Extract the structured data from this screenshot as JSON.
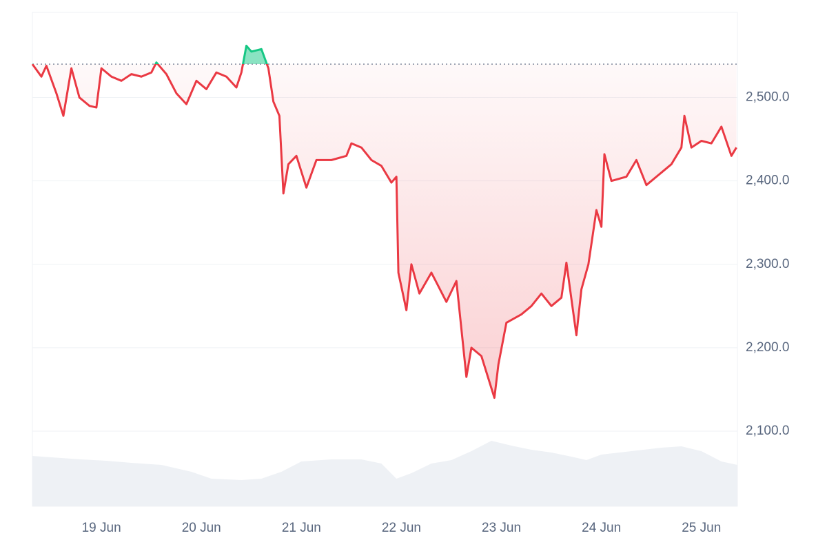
{
  "chart_data": {
    "type": "line",
    "x": [
      18.31,
      18.4,
      18.45,
      18.55,
      18.62,
      18.7,
      18.78,
      18.88,
      18.95,
      19.0,
      19.1,
      19.2,
      19.3,
      19.4,
      19.5,
      19.55,
      19.65,
      19.75,
      19.85,
      19.95,
      20.05,
      20.15,
      20.25,
      20.35,
      20.4,
      20.45,
      20.5,
      20.6,
      20.67,
      20.72,
      20.78,
      20.82,
      20.87,
      20.95,
      21.05,
      21.15,
      21.3,
      21.45,
      21.5,
      21.6,
      21.7,
      21.8,
      21.9,
      21.95,
      21.97,
      22.05,
      22.1,
      22.18,
      22.3,
      22.45,
      22.55,
      22.65,
      22.7,
      22.8,
      22.93,
      22.97,
      23.05,
      23.2,
      23.3,
      23.4,
      23.5,
      23.6,
      23.65,
      23.75,
      23.8,
      23.87,
      23.95,
      24.0,
      24.03,
      24.1,
      24.25,
      24.35,
      24.45,
      24.6,
      24.7,
      24.8,
      24.83,
      24.9,
      25.0,
      25.1,
      25.2,
      25.3,
      25.35
    ],
    "values": [
      2540,
      2525,
      2538,
      2505,
      2478,
      2535,
      2500,
      2490,
      2488,
      2535,
      2525,
      2520,
      2528,
      2525,
      2530,
      2542,
      2528,
      2505,
      2492,
      2520,
      2510,
      2530,
      2525,
      2512,
      2530,
      2562,
      2555,
      2558,
      2535,
      2495,
      2478,
      2385,
      2420,
      2430,
      2392,
      2425,
      2425,
      2430,
      2445,
      2440,
      2425,
      2418,
      2398,
      2405,
      2290,
      2245,
      2300,
      2265,
      2290,
      2255,
      2280,
      2165,
      2200,
      2190,
      2140,
      2180,
      2230,
      2240,
      2250,
      2265,
      2250,
      2260,
      2302,
      2215,
      2270,
      2300,
      2365,
      2345,
      2432,
      2400,
      2405,
      2425,
      2395,
      2410,
      2420,
      2440,
      2478,
      2440,
      2448,
      2445,
      2465,
      2430,
      2440
    ],
    "baseline": 2540,
    "up_color": "#16c784",
    "down_color": "#ea3943",
    "volume": {
      "x": [
        18.31,
        18.6,
        18.8,
        19.05,
        19.3,
        19.6,
        19.9,
        20.1,
        20.4,
        20.6,
        20.8,
        21.0,
        21.3,
        21.6,
        21.8,
        21.95,
        22.1,
        22.3,
        22.5,
        22.7,
        22.9,
        23.1,
        23.3,
        23.5,
        23.7,
        23.85,
        24.0,
        24.3,
        24.6,
        24.8,
        25.0,
        25.2,
        25.36
      ],
      "values": [
        73,
        70,
        68,
        66,
        63,
        60,
        50,
        40,
        38,
        40,
        50,
        65,
        68,
        68,
        62,
        40,
        48,
        62,
        67,
        80,
        95,
        88,
        82,
        78,
        72,
        67,
        75,
        80,
        85,
        87,
        80,
        65,
        60
      ],
      "color": "#eef1f5"
    },
    "vlim": [
      0,
      100
    ],
    "xlim": [
      18.31,
      25.36
    ],
    "xticks": [
      {
        "value": 19,
        "label": "19 Jun"
      },
      {
        "value": 20,
        "label": "20 Jun"
      },
      {
        "value": 21,
        "label": "21 Jun"
      },
      {
        "value": 22,
        "label": "22 Jun"
      },
      {
        "value": 23,
        "label": "23 Jun"
      },
      {
        "value": 24,
        "label": "24 Jun"
      },
      {
        "value": 25,
        "label": "25 Jun"
      }
    ],
    "ylim": [
      2010,
      2602
    ],
    "yticks": [
      {
        "value": 2100,
        "label": "2,100.0"
      },
      {
        "value": 2200,
        "label": "2,200.0"
      },
      {
        "value": 2300,
        "label": "2,300.0"
      },
      {
        "value": 2400,
        "label": "2,400.0"
      },
      {
        "value": 2500,
        "label": "2,500.0"
      }
    ],
    "grid": true
  }
}
